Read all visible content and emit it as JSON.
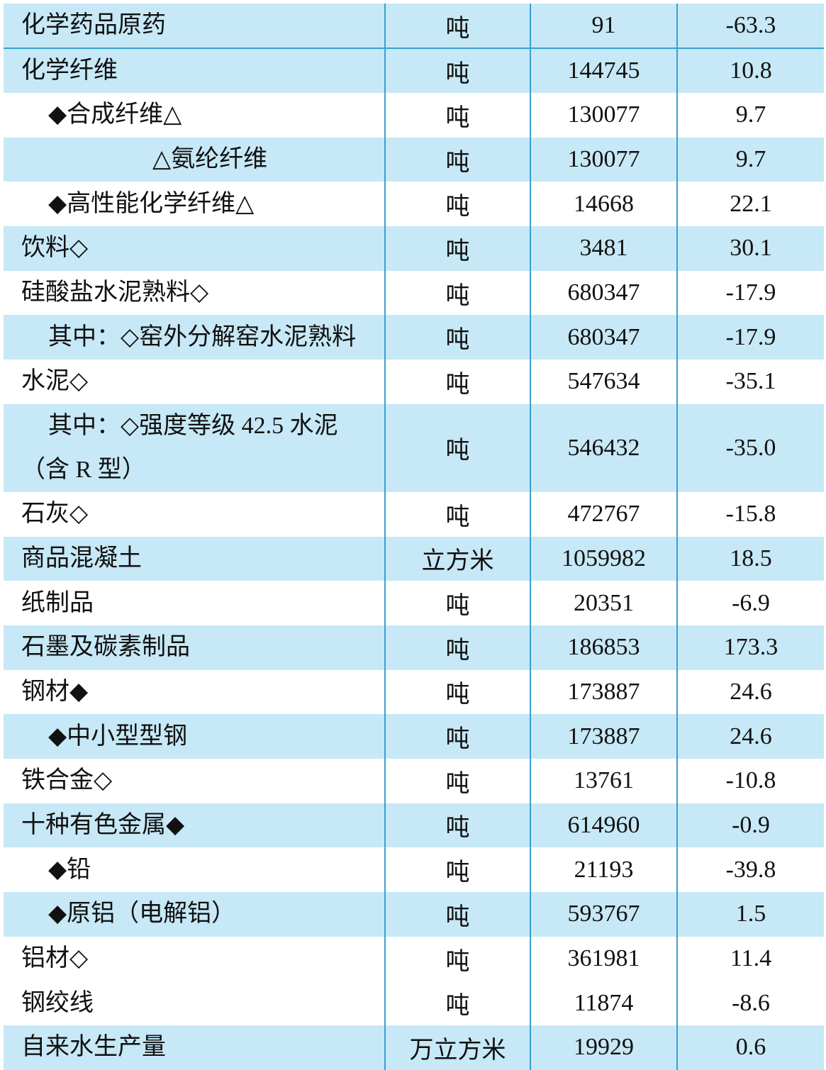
{
  "table": {
    "rows": [
      [
        "化学药品原药",
        "吨",
        "91",
        "-63.3"
      ],
      [
        "化学纤维",
        "吨",
        "144745",
        "10.8"
      ],
      [
        "◆合成纤维△",
        "吨",
        "130077",
        "9.7"
      ],
      [
        "△氨纶纤维",
        "吨",
        "130077",
        "9.7"
      ],
      [
        "◆高性能化学纤维△",
        "吨",
        "14668",
        "22.1"
      ],
      [
        "饮料◇",
        "吨",
        "3481",
        "30.1"
      ],
      [
        "硅酸盐水泥熟料◇",
        "吨",
        "680347",
        "-17.9"
      ],
      [
        "其中：◇窑外分解窑水泥熟料",
        "吨",
        "680347",
        "-17.9"
      ],
      [
        "水泥◇",
        "吨",
        "547634",
        "-35.1"
      ],
      [
        "其中：◇强度等级 42.5 水泥（含 R 型）",
        "吨",
        "546432",
        "-35.0"
      ],
      [
        "石灰◇",
        "吨",
        "472767",
        "-15.8"
      ],
      [
        "商品混凝土",
        "立方米",
        "1059982",
        "18.5"
      ],
      [
        "纸制品",
        "吨",
        "20351",
        "-6.9"
      ],
      [
        "石墨及碳素制品",
        "吨",
        "186853",
        "173.3"
      ],
      [
        "钢材◆",
        "吨",
        "173887",
        "24.6"
      ],
      [
        "◆中小型型钢",
        "吨",
        "173887",
        "24.6"
      ],
      [
        "铁合金◇",
        "吨",
        "13761",
        "-10.8"
      ],
      [
        "十种有色金属◆",
        "吨",
        "614960",
        "-0.9"
      ],
      [
        "◆铅",
        "吨",
        "21193",
        "-39.8"
      ],
      [
        "◆原铝（电解铝）",
        "吨",
        "593767",
        "1.5"
      ],
      [
        "铝材◇",
        "吨",
        "361981",
        "11.4"
      ],
      [
        "钢绞线",
        "吨",
        "11874",
        "-8.6"
      ],
      [
        "自来水生产量",
        "万立方米",
        "19929",
        "0.6"
      ]
    ]
  }
}
